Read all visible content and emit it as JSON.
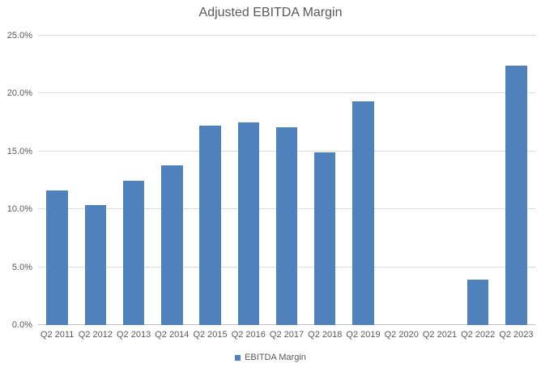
{
  "chart_data": {
    "type": "bar",
    "title": "Adjusted EBITDA Margin",
    "series_name": "EBITDA Margin",
    "categories": [
      "Q2 2011",
      "Q2 2012",
      "Q2 2013",
      "Q2 2014",
      "Q2 2015",
      "Q2 2016",
      "Q2 2017",
      "Q2 2018",
      "Q2 2019",
      "Q2 2020",
      "Q2 2021",
      "Q2 2022",
      "Q2 2023"
    ],
    "values": [
      11.6,
      10.4,
      12.5,
      13.8,
      17.2,
      17.5,
      17.1,
      14.9,
      19.3,
      0.0,
      0.0,
      3.9,
      22.4
    ],
    "xlabel": "",
    "ylabel": "",
    "ylim": [
      0,
      25
    ],
    "y_ticks": [
      {
        "value": 0,
        "label": "0.0%"
      },
      {
        "value": 5,
        "label": "5.0%"
      },
      {
        "value": 10,
        "label": "10.0%"
      },
      {
        "value": 15,
        "label": "15.0%"
      },
      {
        "value": 20,
        "label": "20.0%"
      },
      {
        "value": 25,
        "label": "25.0%"
      }
    ],
    "grid": true,
    "legend_position": "bottom",
    "colors": {
      "bar": "#4F81BD",
      "gridline": "#D9D9D9",
      "axis_line": "#BFBFBF",
      "text": "#595959",
      "background": "#FFFFFF"
    }
  }
}
